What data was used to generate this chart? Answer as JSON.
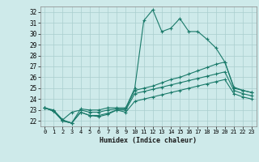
{
  "xlabel": "Humidex (Indice chaleur)",
  "background_color": "#ceeaea",
  "grid_color": "#aacece",
  "line_color": "#1a7a6a",
  "xlim": [
    -0.5,
    23.5
  ],
  "ylim": [
    21.5,
    32.5
  ],
  "yticks": [
    22,
    23,
    24,
    25,
    26,
    27,
    28,
    29,
    30,
    31,
    32
  ],
  "xticks": [
    0,
    1,
    2,
    3,
    4,
    5,
    6,
    7,
    8,
    9,
    10,
    11,
    12,
    13,
    14,
    15,
    16,
    17,
    18,
    19,
    20,
    21,
    22,
    23
  ],
  "series": [
    [
      23.2,
      23.0,
      22.1,
      21.8,
      23.1,
      23.0,
      23.0,
      23.2,
      23.2,
      23.2,
      25.0,
      31.2,
      32.2,
      30.2,
      30.5,
      31.4,
      30.2,
      30.2,
      29.5,
      28.7,
      27.4,
      25.1,
      24.8,
      24.6
    ],
    [
      23.2,
      22.9,
      22.1,
      22.8,
      23.0,
      22.8,
      22.8,
      23.0,
      23.1,
      23.1,
      24.8,
      25.0,
      25.2,
      25.5,
      25.8,
      26.0,
      26.3,
      26.6,
      26.9,
      27.2,
      27.4,
      25.0,
      24.8,
      24.6
    ],
    [
      23.2,
      22.9,
      22.0,
      21.8,
      22.8,
      22.5,
      22.5,
      22.7,
      23.0,
      23.0,
      24.5,
      24.7,
      24.9,
      25.1,
      25.3,
      25.5,
      25.7,
      25.9,
      26.1,
      26.3,
      26.5,
      24.8,
      24.5,
      24.3
    ],
    [
      23.2,
      22.9,
      22.0,
      21.8,
      22.8,
      22.5,
      22.4,
      22.6,
      23.0,
      22.8,
      23.8,
      24.0,
      24.2,
      24.4,
      24.6,
      24.8,
      25.0,
      25.2,
      25.4,
      25.6,
      25.8,
      24.5,
      24.2,
      24.0
    ]
  ]
}
